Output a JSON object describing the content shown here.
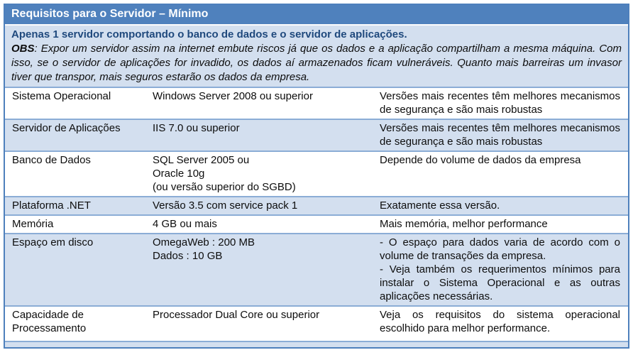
{
  "colors": {
    "header_bg": "#4f81bd",
    "shaded_row_bg": "#d3dfef",
    "inner_border": "#8badd6",
    "outer_border": "#4e80bc",
    "title_text": "#ffffff",
    "subtitle_text": "#1f497d",
    "body_text": "#0d0d0d"
  },
  "table": {
    "title": "Requisitos para o Servidor – Mínimo",
    "subtitle": "Apenas 1 servidor comportando o banco de dados e o servidor de aplicações.",
    "obs_label": "OBS",
    "obs_text": ": Expor um servidor assim na internet embute riscos já que os dados e a aplicação compartilham a mesma máquina. Com isso, se o servidor de aplicações for invadido, os dados aí armazenados ficam vulneráveis. Quanto mais barreiras um invasor tiver que transpor, mais seguros estarão os dados da empresa.",
    "rows": [
      {
        "requirement": "Sistema Operacional",
        "minimum": "Windows Server 2008 ou superior",
        "notes": "Versões mais recentes têm melhores mecanismos de segurança e são mais robustas"
      },
      {
        "requirement": "Servidor de Aplicações",
        "minimum": "IIS 7.0 ou superior",
        "notes": "Versões mais recentes têm melhores mecanismos de segurança e são mais robustas"
      },
      {
        "requirement": "Banco de Dados",
        "minimum": "SQL Server 2005 ou\nOracle 10g\n(ou versão superior do SGBD)",
        "notes": "Depende do volume de dados da empresa"
      },
      {
        "requirement": "Plataforma .NET",
        "minimum": "Versão 3.5 com service pack 1",
        "notes": "Exatamente essa versão."
      },
      {
        "requirement": "Memória",
        "minimum": "4 GB ou mais",
        "notes": "Mais memória, melhor performance"
      },
      {
        "requirement": "Espaço em disco",
        "minimum": "OmegaWeb : 200 MB\nDados : 10 GB",
        "notes": "- O espaço para dados varia de acordo com o volume de transações da empresa.\n- Veja também os requerimentos mínimos para instalar o Sistema Operacional e as outras aplicações necessárias."
      },
      {
        "requirement": "Capacidade de Processamento",
        "minimum": "Processador Dual Core ou superior",
        "notes": "Veja os requisitos do sistema operacional escolhido para melhor performance."
      }
    ]
  }
}
